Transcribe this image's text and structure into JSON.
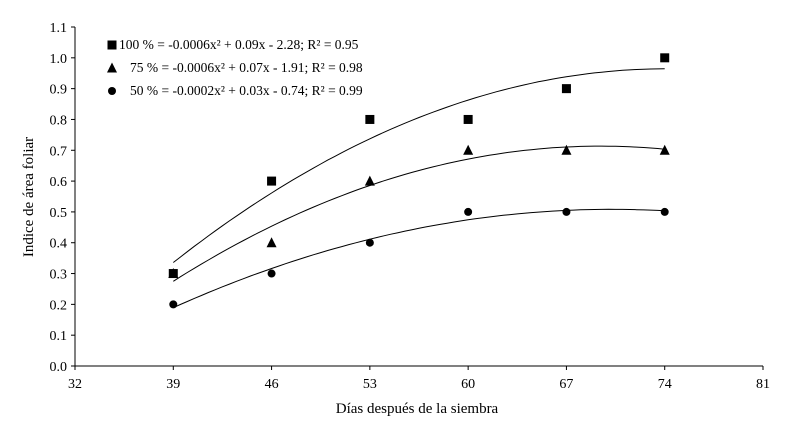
{
  "chart_data": {
    "type": "scatter",
    "xlabel": "Días después de la siembra",
    "ylabel": "Indice de área foliar",
    "xlim": [
      32,
      81
    ],
    "ylim": [
      0,
      1.1
    ],
    "xticks": [
      32,
      39,
      46,
      53,
      60,
      67,
      74,
      81
    ],
    "yticks": [
      "0.0",
      "0.1",
      "0.2",
      "0.3",
      "0.4",
      "0.5",
      "0.6",
      "0.7",
      "0.8",
      "0.9",
      "1.0",
      "1.1"
    ],
    "x": [
      39,
      46,
      53,
      60,
      67,
      74
    ],
    "trendline": "polynomial order 2",
    "legend_position": "top-left",
    "series": [
      {
        "name": "100 %",
        "marker": "square",
        "values": [
          0.3,
          0.6,
          0.8,
          0.8,
          0.9,
          1.0
        ],
        "label": "100 % = -0.0006x² + 0.09x - 2.28; R² = 0.95"
      },
      {
        "name": "75 %",
        "marker": "triangle",
        "values": [
          0.3,
          0.4,
          0.6,
          0.7,
          0.7,
          0.7
        ],
        "label": "75 % = -0.0006x² + 0.07x - 1.91; R² = 0.98"
      },
      {
        "name": "50 %",
        "marker": "circle",
        "values": [
          0.2,
          0.3,
          0.4,
          0.5,
          0.5,
          0.5
        ],
        "label": "50 % = -0.0002x² + 0.03x - 0.74; R² = 0.99"
      }
    ]
  }
}
